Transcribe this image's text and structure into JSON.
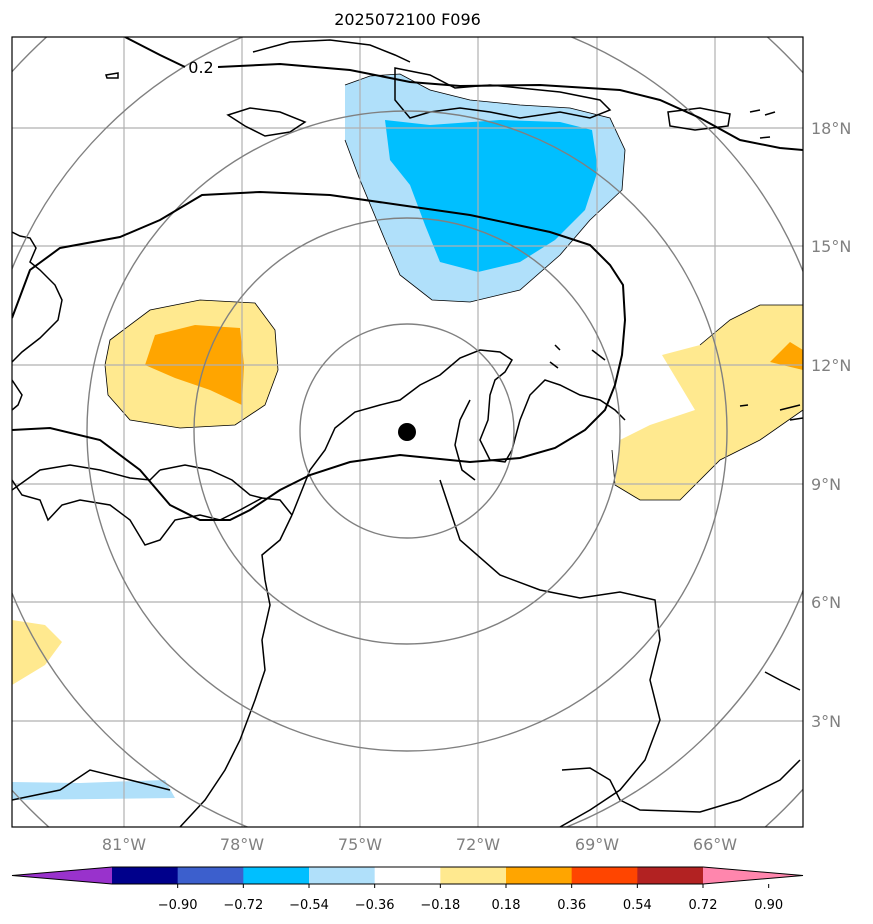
{
  "title": "2025072100 F096",
  "map": {
    "lat_labels": [
      "18°N",
      "15°N",
      "12°N",
      "9°N",
      "6°N",
      "3°N"
    ],
    "lon_labels": [
      "81°W",
      "78°W",
      "75°W",
      "72°W",
      "69°W",
      "66°W"
    ],
    "contour_label": "0.2",
    "label_color": "#808080"
  },
  "colorbar": {
    "ticks": [
      "−0.90",
      "−0.72",
      "−0.54",
      "−0.36",
      "−0.18",
      "0.18",
      "0.36",
      "0.54",
      "0.72",
      "0.90"
    ],
    "colors": [
      "#9932cc",
      "#00008b",
      "#3c5fcd",
      "#00bfff",
      "#b0e0fa",
      "#ffffff",
      "#ffe98f",
      "#ffa500",
      "#ff4500",
      "#b22222",
      "#ff86ad"
    ]
  }
}
